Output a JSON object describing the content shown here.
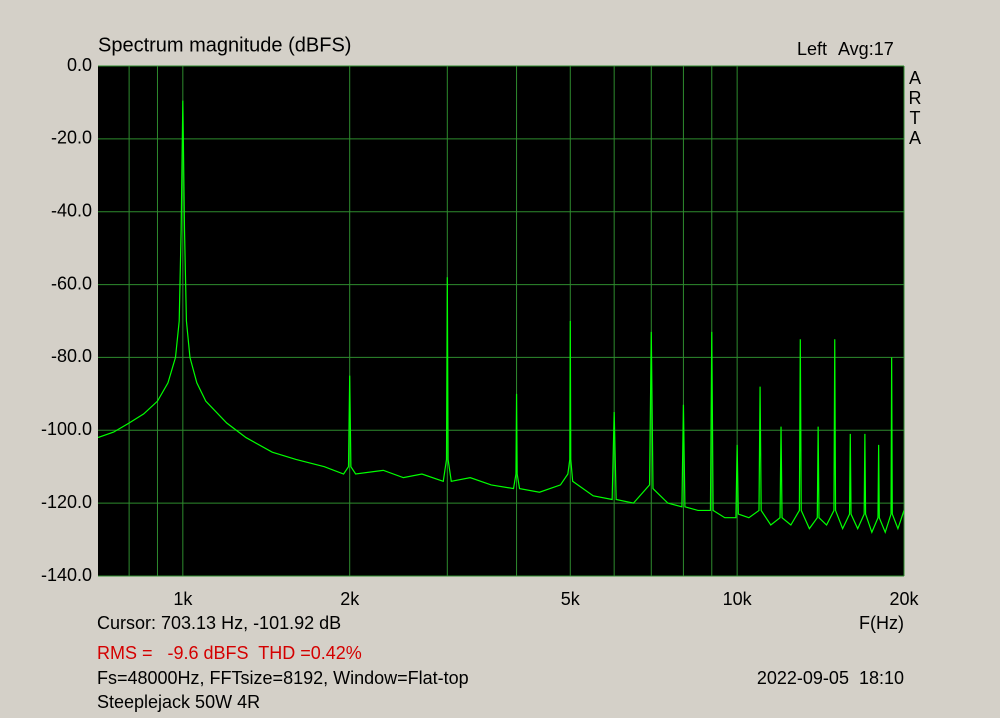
{
  "chart_data": {
    "type": "line",
    "title": "Spectrum magnitude (dBFS)",
    "avg_label": "Avg:17",
    "side_label": "ARTA",
    "x_label": "F(Hz)",
    "cursor_text": "Cursor: 703.13 Hz, -101.92 dB",
    "measure_text": "RMS =   -9.6 dBFS  THD =0.42%",
    "settings_text": "Fs=48000Hz, FFTsize=8192, Window=Flat-top",
    "timestamp": "2022-09-05  18:10",
    "device_text": "Steeplejack 50W 4R",
    "xscale": "log",
    "grid": true,
    "xlim": [
      703,
      20000
    ],
    "ylim": [
      -140,
      0
    ],
    "xticks": [
      {
        "value": 1000,
        "label": "1k"
      },
      {
        "value": 2000,
        "label": "2k"
      },
      {
        "value": 5000,
        "label": "5k"
      },
      {
        "value": 10000,
        "label": "10k"
      },
      {
        "value": 20000,
        "label": "20k"
      }
    ],
    "xminor": [
      800,
      900,
      3000,
      4000,
      6000,
      7000,
      8000,
      9000
    ],
    "yticks": [
      {
        "value": 0,
        "label": "0.0"
      },
      {
        "value": -20,
        "label": "-20.0"
      },
      {
        "value": -40,
        "label": "-40.0"
      },
      {
        "value": -60,
        "label": "-60.0"
      },
      {
        "value": -80,
        "label": "-80.0"
      },
      {
        "value": -100,
        "label": "-100.0"
      },
      {
        "value": -120,
        "label": "-120.0"
      },
      {
        "value": -140,
        "label": "-140.0"
      }
    ],
    "x": [
      703,
      750,
      800,
      850,
      900,
      940,
      970,
      985,
      993,
      1000,
      1007,
      1015,
      1030,
      1060,
      1100,
      1200,
      1300,
      1450,
      1600,
      1800,
      1950,
      1990,
      2000,
      2010,
      2050,
      2300,
      2500,
      2700,
      2950,
      2990,
      3000,
      3010,
      3050,
      3300,
      3600,
      3950,
      3990,
      4000,
      4010,
      4050,
      4400,
      4800,
      4950,
      4990,
      5000,
      5010,
      5050,
      5500,
      5950,
      6000,
      6050,
      6500,
      6950,
      7000,
      7050,
      7500,
      7950,
      8000,
      8050,
      8500,
      8950,
      9000,
      9050,
      9500,
      9950,
      10000,
      10050,
      10500,
      10950,
      11000,
      11050,
      11500,
      11950,
      12000,
      12050,
      12500,
      12950,
      13000,
      13050,
      13500,
      13950,
      14000,
      14050,
      14500,
      14950,
      15000,
      15050,
      15500,
      15950,
      16000,
      16050,
      16500,
      16950,
      17000,
      17050,
      17500,
      17950,
      18000,
      18050,
      18500,
      18950,
      19000,
      19050,
      19500,
      20000
    ],
    "series": [
      {
        "name": "Left",
        "color": "#00ff00",
        "values": [
          -102,
          -100.5,
          -98,
          -95.5,
          -92,
          -87,
          -80,
          -70,
          -45,
          -9.5,
          -45,
          -70,
          -80,
          -87,
          -92,
          -98,
          -102,
          -106,
          -108,
          -110,
          -112,
          -110,
          -85,
          -110,
          -112,
          -111,
          -113,
          -112,
          -114,
          -108,
          -58,
          -108,
          -114,
          -113,
          -115,
          -116,
          -112,
          -90,
          -112,
          -116,
          -117,
          -115,
          -112,
          -108,
          -70,
          -108,
          -114,
          -118,
          -119,
          -95,
          -119,
          -120,
          -115,
          -73,
          -116,
          -120,
          -121,
          -93,
          -121,
          -122,
          -122,
          -73,
          -122,
          -124,
          -124,
          -104,
          -123,
          -124,
          -122,
          -88,
          -122,
          -126,
          -124,
          -99,
          -124,
          -126,
          -122,
          -75,
          -122,
          -127,
          -124,
          -99,
          -124,
          -126,
          -122,
          -75,
          -122,
          -127,
          -123,
          -101,
          -123,
          -127,
          -123,
          -101,
          -123,
          -128,
          -124,
          -104,
          -124,
          -128,
          -123,
          -80,
          -123,
          -127,
          -122
        ]
      }
    ]
  }
}
